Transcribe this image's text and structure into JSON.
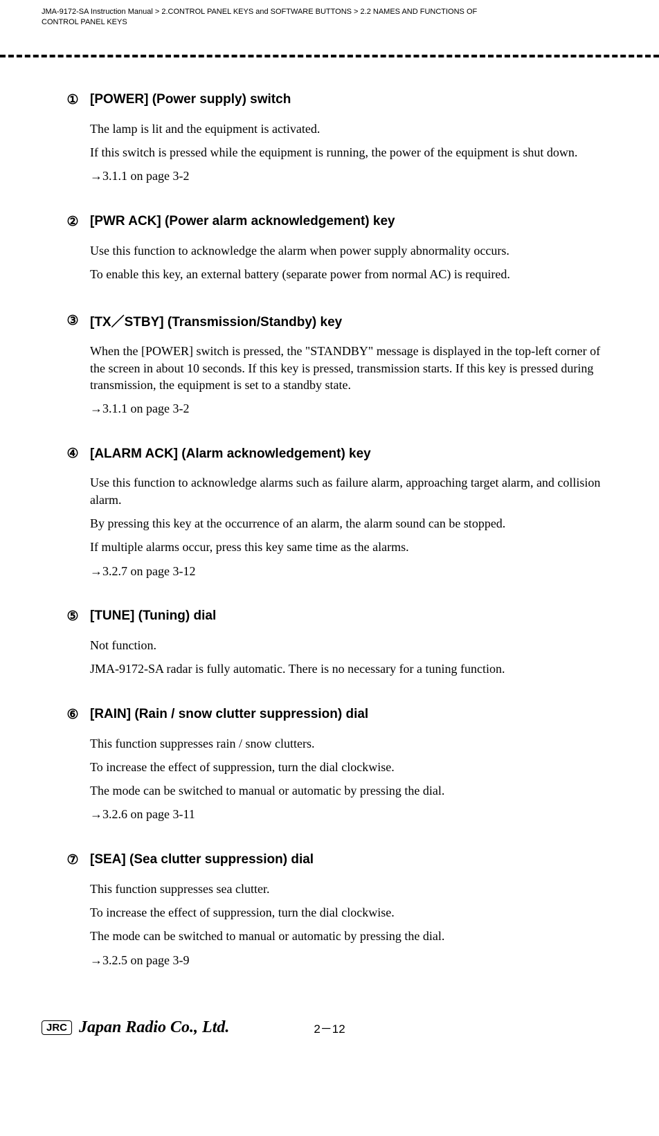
{
  "header": {
    "line1": "JMA-9172-SA Instruction Manual > 2.CONTROL PANEL KEYS and SOFTWARE BUTTONS > 2.2  NAMES AND FUNCTIONS OF",
    "line2": "CONTROL PANEL KEYS"
  },
  "sections": [
    {
      "num": "①",
      "title": "[POWER] (Power supply) switch",
      "paras": [
        "The lamp is lit and the equipment is activated.",
        "If this switch is pressed while the equipment is running, the power of the equipment is shut down.",
        "→3.1.1 on page 3-2"
      ]
    },
    {
      "num": "②",
      "title": "[PWR ACK] (Power alarm acknowledgement) key",
      "paras": [
        "Use this function to acknowledge the alarm when power supply abnormality occurs.",
        "To enable this key, an external battery (separate power from normal AC) is required."
      ]
    },
    {
      "num": "③",
      "title": "[TX／STBY] (Transmission/Standby) key",
      "paras": [
        "When the [POWER] switch is pressed, the \"STANDBY\" message is displayed in the top-left corner of the screen in about 10 seconds.  If this key is pressed, transmission starts. If this key is pressed during transmission, the equipment is set to a standby state.",
        "→3.1.1 on page 3-2"
      ]
    },
    {
      "num": "④",
      "title": "[ALARM ACK] (Alarm acknowledgement) key",
      "paras": [
        "Use this function to acknowledge alarms such as failure alarm, approaching target alarm, and collision alarm.",
        "By pressing this key at the occurrence of an alarm, the alarm sound can be stopped.",
        "If multiple alarms occur, press this key same time as the alarms.",
        "→3.2.7 on page 3-12"
      ]
    },
    {
      "num": "⑤",
      "title": "[TUNE] (Tuning) dial",
      "paras": [
        "Not function.",
        "JMA-9172-SA radar is fully automatic. There is no necessary for a tuning function."
      ]
    },
    {
      "num": "⑥",
      "title": "[RAIN] (Rain / snow clutter suppression) dial",
      "paras": [
        "This function suppresses rain / snow clutters.",
        "To increase the effect of suppression, turn the dial clockwise.",
        "The mode can be switched to manual or automatic by pressing the dial.",
        "→3.2.6 on page 3-11"
      ]
    },
    {
      "num": "⑦",
      "title": "[SEA] (Sea clutter suppression) dial",
      "paras": [
        "This function suppresses sea clutter.",
        "To increase the effect of suppression, turn the dial clockwise.",
        "The mode can be switched to manual or automatic by pressing the dial.",
        "→3.2.5 on page 3-9"
      ]
    }
  ],
  "footer": {
    "jrc": "JRC",
    "company": "Japan Radio Co., Ltd.",
    "page": "2－12"
  }
}
